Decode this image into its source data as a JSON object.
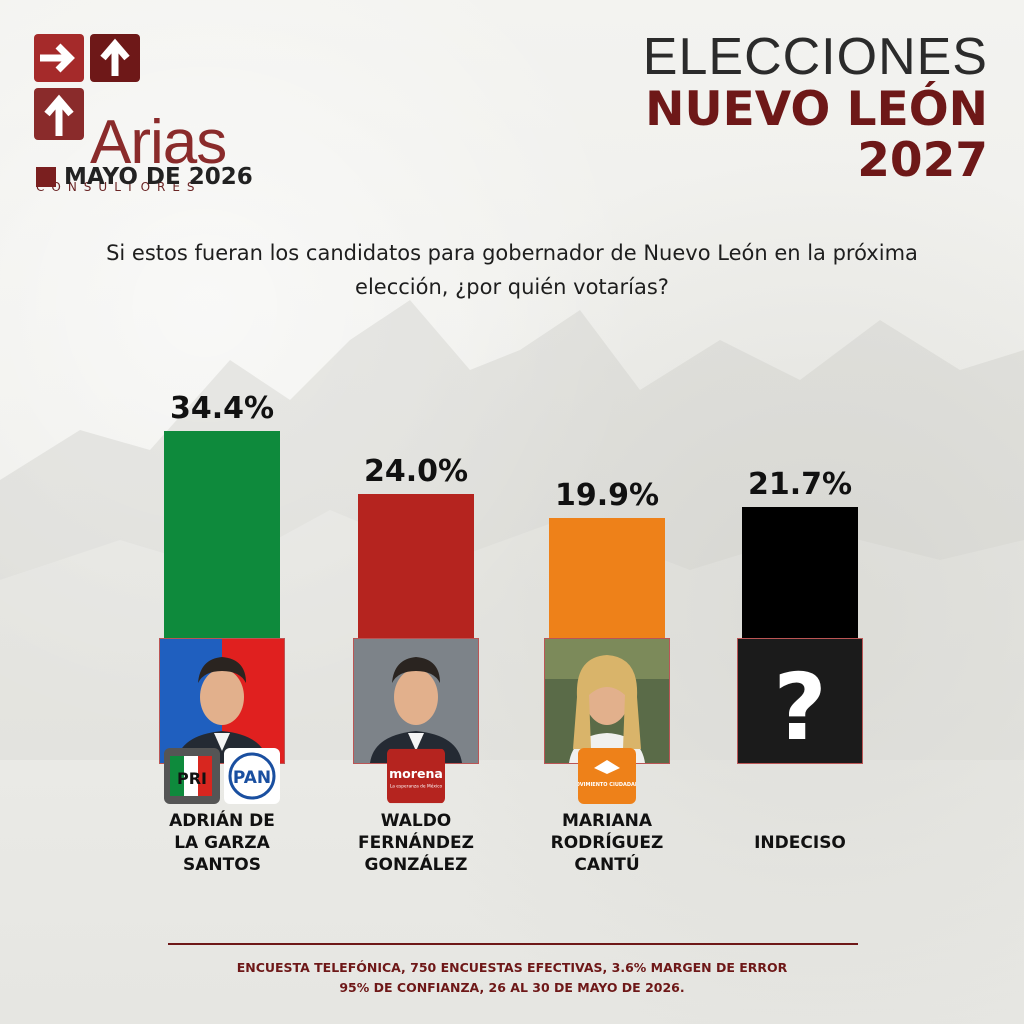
{
  "brand": {
    "name": "Arias",
    "subtitle": "CONSULTORES",
    "date": "MAYO DE 2026",
    "color": "#8a2b2b"
  },
  "title": {
    "line1": "ELECCIONES",
    "line2": "NUEVO LEÓN",
    "line3": "2027"
  },
  "question": "Si estos fueran los candidatos para gobernador de Nuevo León en la próxima elección, ¿por quién votarías?",
  "chart_data": {
    "type": "bar",
    "categories": [
      "ADRIÁN DE LA GARZA SANTOS",
      "WALDO FERNÁNDEZ GONZÁLEZ",
      "MARIANA RODRÍGUEZ CANTÚ",
      "INDECISO"
    ],
    "values": [
      34.4,
      24.0,
      19.9,
      21.7
    ],
    "value_labels": [
      "34.4%",
      "24.0%",
      "19.9%",
      "21.7%"
    ],
    "colors": [
      "#0e8a3c",
      "#b5241f",
      "#ee8119",
      "#000000"
    ],
    "ylim": [
      0,
      34.4
    ],
    "grid": false
  },
  "candidates": [
    {
      "name_lines": [
        "ADRIÁN DE",
        "LA GARZA",
        "SANTOS"
      ],
      "parties": [
        "PRI",
        "PAN"
      ],
      "photo": "man-portrait"
    },
    {
      "name_lines": [
        "WALDO",
        "FERNÁNDEZ",
        "GONZÁLEZ"
      ],
      "parties": [
        "morena"
      ],
      "party_tagline": "La esperanza de México",
      "photo": "man-portrait"
    },
    {
      "name_lines": [
        "MARIANA",
        "RODRÍGUEZ",
        "CANTÚ"
      ],
      "parties": [
        "MOVIMIENTO CIUDADANO"
      ],
      "photo": "woman-portrait"
    },
    {
      "name_lines": [
        "INDECISO"
      ],
      "parties": [],
      "photo": "question-mark",
      "symbol": "?"
    }
  ],
  "footer": {
    "line1": "ENCUESTA TELEFÓNICA, 750 ENCUESTAS EFECTIVAS, 3.6%  MARGEN DE ERROR",
    "line2": "95% DE CONFIANZA, 26 AL 30 DE MAYO DE 2026."
  }
}
